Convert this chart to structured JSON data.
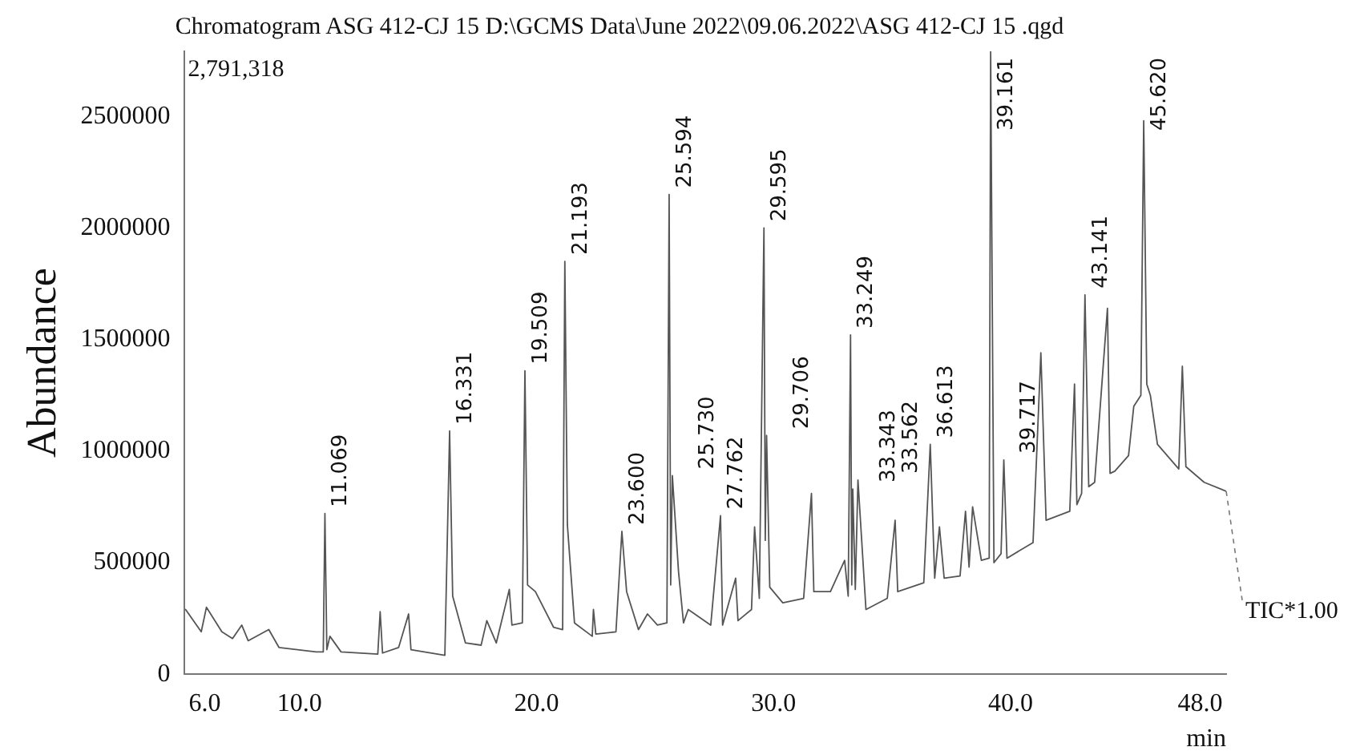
{
  "chart_data": {
    "type": "line",
    "title": "Chromatogram ASG 412-CJ 15 D:\\GCMS Data\\June 2022\\09.06.2022\\ASG 412-CJ 15 .qgd",
    "xlabel": "min",
    "ylabel": "Abundance",
    "xlim": [
      5.15,
      49.1
    ],
    "xticks": [
      {
        "value": 6,
        "label": "6.0"
      },
      {
        "value": 10,
        "label": "10.0"
      },
      {
        "value": 20,
        "label": "20.0"
      },
      {
        "value": 30,
        "label": "30.0"
      },
      {
        "value": 40,
        "label": "40.0"
      },
      {
        "value": 48,
        "label": "48.0"
      }
    ],
    "ylim": [
      0,
      2791318
    ],
    "yticks": [
      0,
      500000,
      1000000,
      1500000,
      2000000,
      2500000
    ],
    "grid": false,
    "legend": false,
    "marker": "none",
    "line_style": "solid",
    "series": [
      {
        "color": "#555555",
        "x": [
          5.19,
          5.85,
          6.07,
          6.72,
          7.17,
          7.56,
          7.83,
          8.7,
          9.13,
          10.7,
          11.0,
          11.069,
          11.15,
          11.28,
          11.75,
          13.3,
          13.4,
          13.5,
          14.18,
          14.6,
          14.7,
          16.13,
          16.331,
          16.46,
          17.0,
          17.66,
          17.9,
          18.3,
          18.85,
          18.96,
          19.4,
          19.509,
          19.62,
          19.95,
          20.72,
          21.1,
          21.193,
          21.3,
          21.6,
          22.35,
          22.4,
          22.5,
          23.35,
          23.6,
          23.8,
          24.3,
          24.68,
          25.1,
          25.5,
          25.594,
          25.66,
          25.73,
          25.99,
          26.2,
          26.4,
          27.35,
          27.762,
          27.85,
          28.4,
          28.5,
          29.07,
          29.2,
          29.4,
          29.595,
          29.65,
          29.706,
          29.84,
          30.39,
          31.27,
          31.6,
          31.7,
          32.4,
          33.0,
          33.15,
          33.249,
          33.3,
          33.343,
          33.45,
          33.562,
          33.9,
          34.8,
          35.13,
          35.24,
          36.34,
          36.613,
          36.8,
          37.0,
          37.2,
          37.87,
          38.1,
          38.25,
          38.4,
          38.77,
          39.1,
          39.161,
          39.3,
          39.6,
          39.717,
          39.85,
          40.95,
          41.28,
          41.5,
          42.5,
          42.7,
          42.8,
          43.0,
          43.141,
          43.3,
          43.55,
          44.09,
          44.2,
          44.4,
          44.98,
          45.2,
          45.5,
          45.62,
          45.75,
          45.9,
          46.2,
          47.1,
          47.25,
          47.4,
          48.17,
          49.1
        ],
        "values": [
          290000,
          190000,
          300000,
          190000,
          160000,
          220000,
          150000,
          200000,
          120000,
          100000,
          100000,
          720000,
          110000,
          170000,
          100000,
          90000,
          280000,
          95000,
          120000,
          270000,
          110000,
          85000,
          1090000,
          350000,
          140000,
          130000,
          240000,
          140000,
          380000,
          220000,
          230000,
          1360000,
          400000,
          370000,
          210000,
          200000,
          1850000,
          670000,
          230000,
          170000,
          290000,
          180000,
          190000,
          640000,
          370000,
          200000,
          270000,
          220000,
          230000,
          2150000,
          400000,
          890000,
          460000,
          230000,
          290000,
          220000,
          710000,
          220000,
          430000,
          240000,
          290000,
          660000,
          340000,
          2000000,
          600000,
          1070000,
          390000,
          320000,
          340000,
          810000,
          370000,
          370000,
          510000,
          350000,
          1520000,
          400000,
          830000,
          380000,
          870000,
          290000,
          340000,
          690000,
          370000,
          410000,
          1030000,
          430000,
          660000,
          430000,
          440000,
          730000,
          480000,
          750000,
          510000,
          520000,
          2790000,
          500000,
          540000,
          960000,
          520000,
          590000,
          1440000,
          690000,
          730000,
          1300000,
          760000,
          810000,
          1700000,
          840000,
          860000,
          1640000,
          900000,
          910000,
          980000,
          1200000,
          1250000,
          2480000,
          1300000,
          1250000,
          1030000,
          920000,
          1380000,
          930000,
          860000,
          820000
        ]
      }
    ],
    "annotations": [
      "2,791,318",
      {
        "text": "TIC*1.00",
        "x": 49.1,
        "y": 820000
      },
      {
        "text": "11.069",
        "x": 11.069,
        "y": 720000
      },
      {
        "text": "16.331",
        "x": 16.331,
        "y": 1090000
      },
      {
        "text": "19.509",
        "x": 19.509,
        "y": 1360000
      },
      {
        "text": "21.193",
        "x": 21.193,
        "y": 1850000
      },
      {
        "text": "23.600",
        "x": 23.6,
        "y": 640000
      },
      {
        "text": "25.594",
        "x": 25.594,
        "y": 2150000
      },
      {
        "text": "25.730",
        "x": 25.73,
        "y": 890000
      },
      {
        "text": "27.762",
        "x": 27.762,
        "y": 710000
      },
      {
        "text": "29.595",
        "x": 29.595,
        "y": 2000000
      },
      {
        "text": "29.706",
        "x": 29.706,
        "y": 1070000
      },
      {
        "text": "33.249",
        "x": 33.249,
        "y": 1520000
      },
      {
        "text": "33.343",
        "x": 33.343,
        "y": 830000
      },
      {
        "text": "33.562",
        "x": 33.562,
        "y": 870000
      },
      {
        "text": "36.613",
        "x": 36.613,
        "y": 1030000
      },
      {
        "text": "39.161",
        "x": 39.161,
        "y": 2790000
      },
      {
        "text": "39.717",
        "x": 39.717,
        "y": 960000
      },
      {
        "text": "43.141",
        "x": 43.141,
        "y": 1700000
      },
      {
        "text": "45.620",
        "x": 45.62,
        "y": 2480000
      }
    ]
  }
}
